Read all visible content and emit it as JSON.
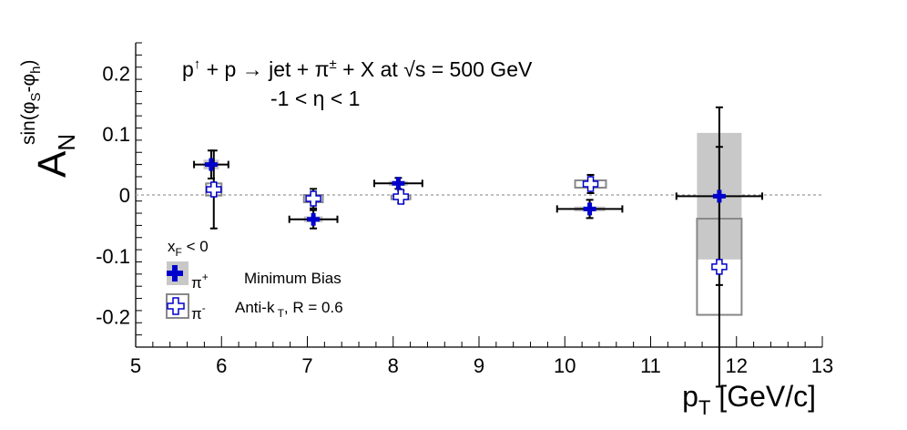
{
  "chart_data": {
    "type": "scatter",
    "title": "",
    "xlabel": "p_T [GeV/c]",
    "ylabel": "A_N^{sin(φ_S-φ_h)}",
    "xlim": [
      5,
      13
    ],
    "ylim": [
      -0.25,
      0.25
    ],
    "x_ticks": [
      "5",
      "6",
      "7",
      "8",
      "9",
      "10",
      "11",
      "12",
      "13"
    ],
    "y_ticks": [
      "-0.2",
      "-0.1",
      "0",
      "0.1",
      "0.2"
    ],
    "reference_line_y": 0,
    "annotations": {
      "reaction": "p↑ + p → jet + π± + X at √s = 500 GeV",
      "eta_range": "-1 < η < 1",
      "xf_cut": "x_F < 0",
      "selection": "Minimum Bias",
      "jet_algo": "Anti-k_T, R = 0.6"
    },
    "legend": {
      "placement": "bottom-left",
      "entries": [
        {
          "label": "π+",
          "marker": "filled-cross",
          "color": "#0000cc",
          "box": "filled-gray"
        },
        {
          "label": "π-",
          "marker": "open-cross",
          "color": "#0000cc",
          "box": "open-gray"
        }
      ]
    },
    "series": [
      {
        "name": "π+",
        "marker": "filled-cross",
        "color": "#0000cc",
        "points": [
          {
            "x": 5.88,
            "y": 0.05,
            "xerr": 0.2,
            "yerr": 0.023,
            "sys": 0.008
          },
          {
            "x": 7.07,
            "y": -0.04,
            "xerr": 0.28,
            "yerr": 0.015,
            "sys": 0.005
          },
          {
            "x": 8.06,
            "y": 0.019,
            "xerr": 0.28,
            "yerr": 0.009,
            "sys": 0.004
          },
          {
            "x": 10.29,
            "y": -0.023,
            "xerr": 0.38,
            "yerr": 0.015,
            "sys": 0.004
          },
          {
            "x": 11.8,
            "y": -0.002,
            "xerr": 0.5,
            "yerr": 0.146,
            "sys": 0.104
          }
        ]
      },
      {
        "name": "π-",
        "marker": "open-cross",
        "color": "#0000cc",
        "points": [
          {
            "x": 5.91,
            "y": 0.009,
            "xerr": 0,
            "yerr": 0.064,
            "sys": 0.01
          },
          {
            "x": 7.07,
            "y": -0.006,
            "xerr": 0,
            "yerr": 0.016,
            "sys": 0.006
          },
          {
            "x": 8.09,
            "y": -0.003,
            "xerr": 0,
            "yerr": 0.01,
            "sys": 0.002
          },
          {
            "x": 10.3,
            "y": 0.018,
            "xerr": 0,
            "yerr": 0.015,
            "sys": 0.006
          },
          {
            "x": 11.8,
            "y": -0.118,
            "xerr": 0,
            "yerr": 0.197,
            "sys": 0.079
          }
        ]
      }
    ]
  }
}
